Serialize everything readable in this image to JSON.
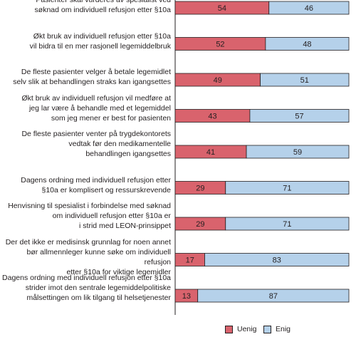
{
  "chart_data": {
    "type": "bar",
    "orientation": "horizontal",
    "stacked": true,
    "categories": [
      [
        "Pasienter skal vurderes av spesialist ved",
        "søknad om individuell refusjon etter §10a"
      ],
      [
        "Økt bruk av individuell refusjon etter §10a",
        "vil bidra til en mer rasjonell legemiddelbruk"
      ],
      [
        "De fleste pasienter velger å betale legemidlet",
        "selv slik at behandlingen straks kan igangsettes"
      ],
      [
        "Økt bruk av individuell refusjon vil medføre at",
        "jeg lar være å behandle med et legemiddel",
        "som jeg mener er best for pasienten"
      ],
      [
        "De fleste pasienter venter på trygdekontorets",
        "vedtak før den medikamentelle",
        "behandlingen igangsettes"
      ],
      [
        "Dagens ordning med individuell refusjon etter",
        "§10a er komplisert og ressurskrevende"
      ],
      [
        "Henvisning til spesialist i forbindelse med søknad",
        "om individuell refusjon etter §10a er",
        "i strid med LEON-prinsippet"
      ],
      [
        "Der det ikke er medisinsk grunnlag for noen annet",
        "bør allmennleger kunne søke om individuell refusjon",
        "etter §10a for viktige legemidler"
      ],
      [
        "Dagens ordning med individuell refusjon etter §10a",
        "strider imot den sentrale legemiddelpolitiske",
        "målsettingen om lik tilgang til helsetjenester"
      ]
    ],
    "series": [
      {
        "name": "Uenig",
        "color": "#d9636d",
        "values": [
          54,
          52,
          49,
          43,
          41,
          29,
          29,
          17,
          13
        ]
      },
      {
        "name": "Enig",
        "color": "#b5d1ea",
        "values": [
          46,
          48,
          51,
          57,
          59,
          71,
          71,
          83,
          87
        ]
      }
    ],
    "xlim": [
      0,
      100
    ],
    "title": "",
    "xlabel": "",
    "ylabel": "",
    "grid": false,
    "legend": "bottom-right"
  }
}
